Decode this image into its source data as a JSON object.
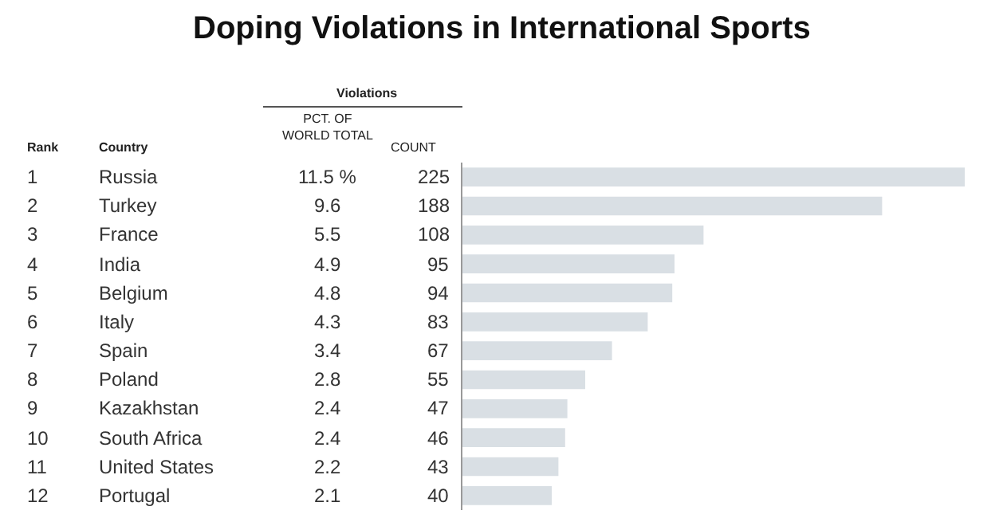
{
  "chart_data": {
    "type": "bar",
    "orientation": "horizontal",
    "title": "Doping Violations in International Sports",
    "categories": [
      "Russia",
      "Turkey",
      "France",
      "India",
      "Belgium",
      "Italy",
      "Spain",
      "Poland",
      "Kazakhstan",
      "South Africa",
      "United States",
      "Portugal"
    ],
    "values": [
      225,
      188,
      108,
      95,
      94,
      83,
      67,
      55,
      47,
      46,
      43,
      40
    ],
    "color": "#d9dfe4",
    "xlim": [
      0,
      225
    ],
    "data_labels": true,
    "tick_labels": "y",
    "annotations": [
      "Violations",
      "PCT. OF\nWORLD TOTAL",
      "COUNT",
      "Rank",
      "Country",
      "1",
      "11.5 %",
      "2",
      "9.6",
      "3",
      "5.5",
      "4",
      "4.9",
      "5",
      "4.8",
      "6",
      "4.3",
      "7",
      "3.4",
      "8",
      "2.8",
      "9",
      "2.4",
      "10",
      "2.4",
      "11",
      "2.2",
      "12",
      "2.1"
    ]
  }
}
